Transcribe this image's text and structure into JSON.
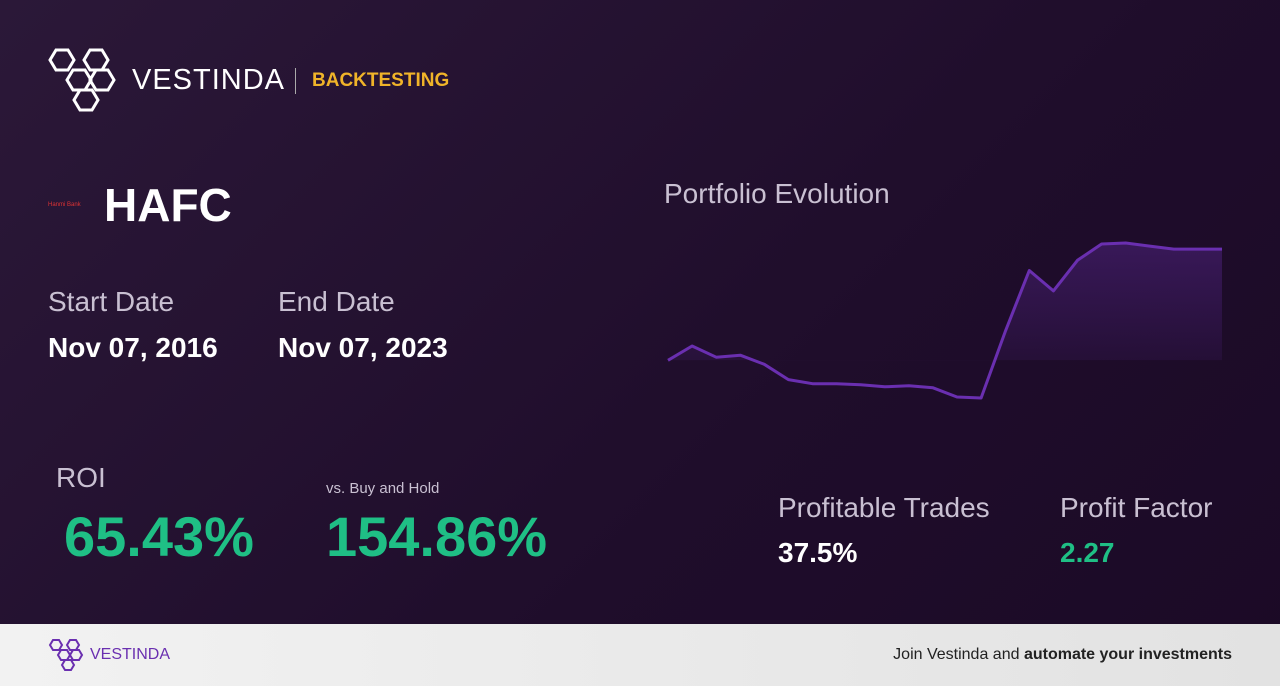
{
  "header": {
    "brand": "VESTINDA",
    "section": "BACKTESTING"
  },
  "stock": {
    "logo_text": "Hanmi Bank",
    "ticker": "HAFC"
  },
  "dates": {
    "start_label": "Start Date",
    "start": "Nov 07, 2016",
    "end_label": "End Date",
    "end": "Nov 07, 2023"
  },
  "returns": {
    "roi_label": "ROI",
    "roi": "65.43%",
    "vs_label": "vs. Buy and Hold",
    "vs": "154.86%"
  },
  "portfolio": {
    "title": "Portfolio Evolution",
    "color": "#6a2fb0",
    "values": [
      100,
      108.4,
      101.8,
      103,
      97.6,
      88.6,
      86.2,
      86.2,
      85.6,
      84.4,
      85,
      83.8,
      78.4,
      77.8,
      116.8,
      152.8,
      140.8,
      158.8,
      168.4,
      169,
      167.2,
      165.4,
      165.4,
      165.4
    ]
  },
  "metrics": {
    "trades_label": "Profitable Trades",
    "trades": "37.5%",
    "factor_label": "Profit Factor",
    "factor": "2.27"
  },
  "footer": {
    "brand": "VESTINDA",
    "cta": "Join Vestinda and ",
    "cta_bold": "automate your investments"
  }
}
